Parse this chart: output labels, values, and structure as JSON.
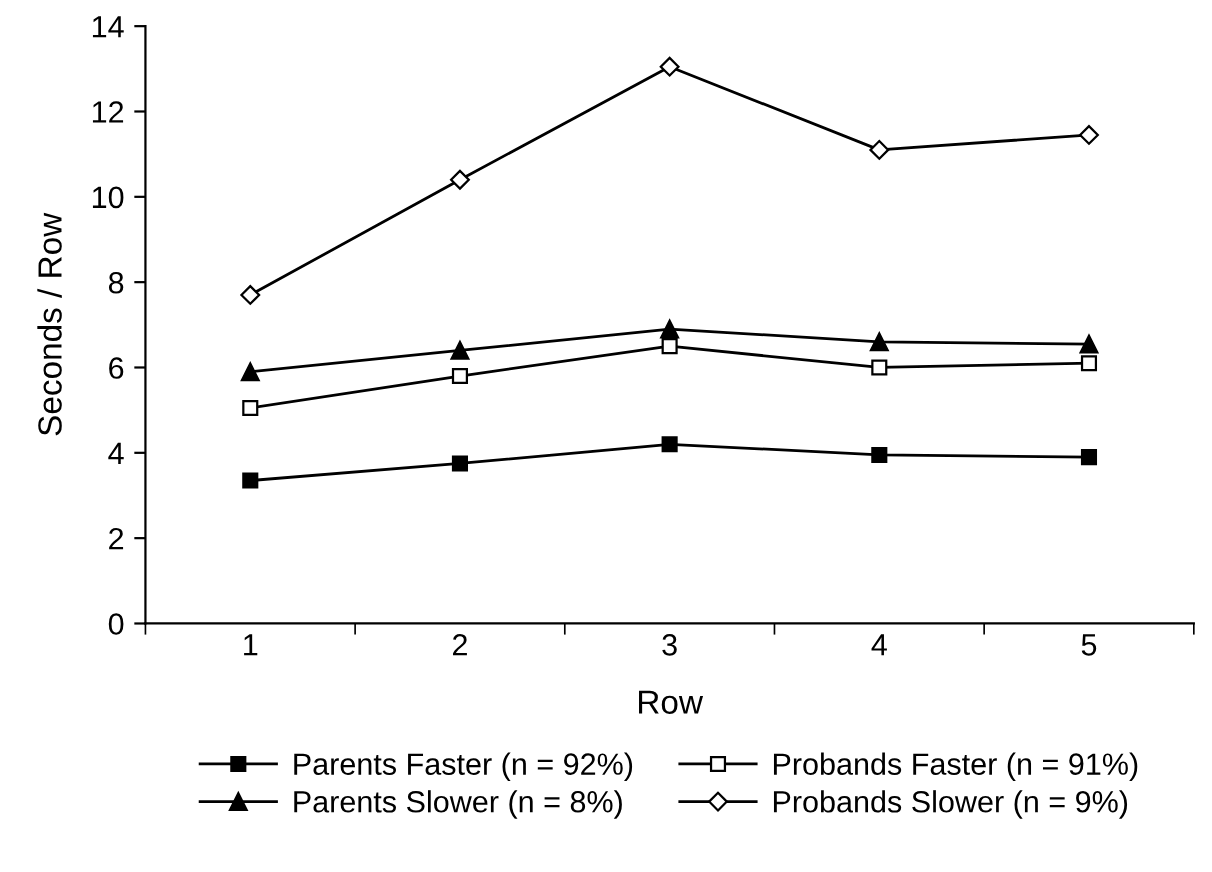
{
  "chart_data": {
    "type": "line",
    "xlabel": "Row",
    "ylabel": "Seconds / Row",
    "categories": [
      "1",
      "2",
      "3",
      "4",
      "5"
    ],
    "ylim": [
      0,
      14
    ],
    "yticks": [
      0,
      2,
      4,
      6,
      8,
      10,
      12,
      14
    ],
    "legend": "bottom",
    "line_style": "solid",
    "series": [
      {
        "name": "Parents Faster (n = 92%)",
        "color": "#000000",
        "marker": "square",
        "values": [
          3.35,
          3.75,
          4.2,
          3.95,
          3.9
        ]
      },
      {
        "name": "Parents Slower (n = 8%)",
        "color": "#000000",
        "marker": "triangle",
        "values": [
          5.9,
          6.4,
          6.9,
          6.6,
          6.55
        ]
      },
      {
        "name": "Probands Faster (n = 91%)",
        "color": "#000000",
        "marker": "square",
        "values": [
          5.05,
          5.8,
          6.5,
          6.0,
          6.1
        ]
      },
      {
        "name": "Probands Slower (n = 9%)",
        "color": "#000000",
        "marker": "diamond",
        "values": [
          7.7,
          10.4,
          13.05,
          11.1,
          11.45
        ]
      }
    ]
  }
}
